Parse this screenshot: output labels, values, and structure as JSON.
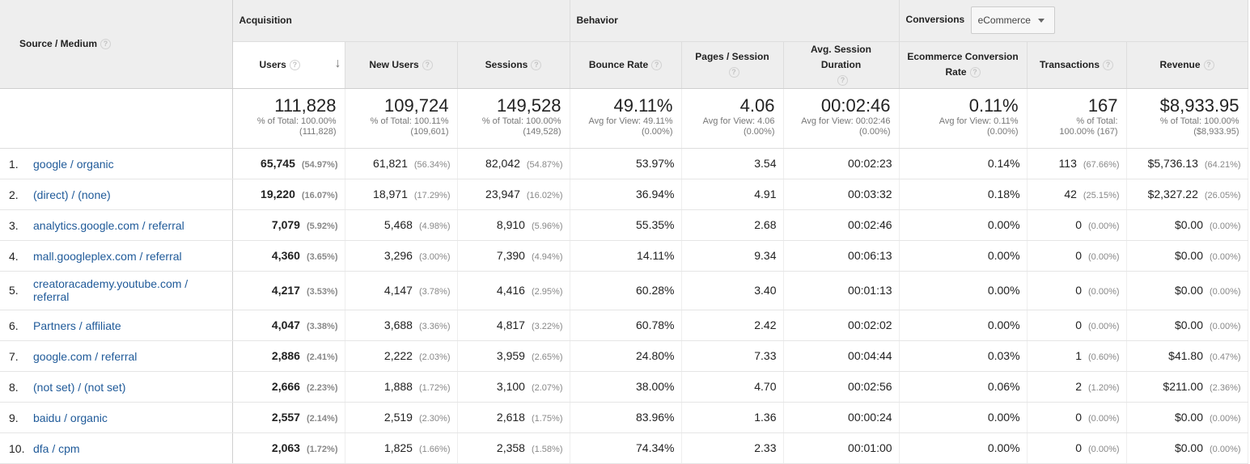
{
  "headers": {
    "source_medium": "Source / Medium",
    "acquisition": "Acquisition",
    "behavior": "Behavior",
    "conversions": "Conversions",
    "conversion_select": "eCommerce",
    "columns": {
      "users": "Users",
      "new_users": "New Users",
      "sessions": "Sessions",
      "bounce_rate": "Bounce Rate",
      "pages_session": "Pages / Session",
      "avg_duration": "Avg. Session Duration",
      "conv_rate": "Ecommerce Conversion Rate",
      "transactions": "Transactions",
      "revenue": "Revenue"
    }
  },
  "totals": {
    "users": {
      "value": "111,828",
      "l1": "% of Total: 100.00%",
      "l2": "(111,828)"
    },
    "new_users": {
      "value": "109,724",
      "l1": "% of Total: 100.11%",
      "l2": "(109,601)"
    },
    "sessions": {
      "value": "149,528",
      "l1": "% of Total: 100.00%",
      "l2": "(149,528)"
    },
    "bounce_rate": {
      "value": "49.11%",
      "l1": "Avg for View: 49.11%",
      "l2": "(0.00%)"
    },
    "pages_session": {
      "value": "4.06",
      "l1": "Avg for View: 4.06",
      "l2": "(0.00%)"
    },
    "avg_duration": {
      "value": "00:02:46",
      "l1": "Avg for View: 00:02:46",
      "l2": "(0.00%)"
    },
    "conv_rate": {
      "value": "0.11%",
      "l1": "Avg for View: 0.11%",
      "l2": "(0.00%)"
    },
    "transactions": {
      "value": "167",
      "l1": "% of Total:",
      "l2": "100.00% (167)"
    },
    "revenue": {
      "value": "$8,933.95",
      "l1": "% of Total: 100.00%",
      "l2": "($8,933.95)"
    }
  },
  "rows": [
    {
      "idx": "1.",
      "source": "google / organic",
      "users": "65,745",
      "users_pct": "(54.97%)",
      "new_users": "61,821",
      "new_users_pct": "(56.34%)",
      "sessions": "82,042",
      "sessions_pct": "(54.87%)",
      "bounce": "53.97%",
      "pages": "3.54",
      "duration": "00:02:23",
      "conv": "0.14%",
      "trans": "113",
      "trans_pct": "(67.66%)",
      "revenue": "$5,736.13",
      "revenue_pct": "(64.21%)"
    },
    {
      "idx": "2.",
      "source": "(direct) / (none)",
      "users": "19,220",
      "users_pct": "(16.07%)",
      "new_users": "18,971",
      "new_users_pct": "(17.29%)",
      "sessions": "23,947",
      "sessions_pct": "(16.02%)",
      "bounce": "36.94%",
      "pages": "4.91",
      "duration": "00:03:32",
      "conv": "0.18%",
      "trans": "42",
      "trans_pct": "(25.15%)",
      "revenue": "$2,327.22",
      "revenue_pct": "(26.05%)"
    },
    {
      "idx": "3.",
      "source": "analytics.google.com / referral",
      "users": "7,079",
      "users_pct": "(5.92%)",
      "new_users": "5,468",
      "new_users_pct": "(4.98%)",
      "sessions": "8,910",
      "sessions_pct": "(5.96%)",
      "bounce": "55.35%",
      "pages": "2.68",
      "duration": "00:02:46",
      "conv": "0.00%",
      "trans": "0",
      "trans_pct": "(0.00%)",
      "revenue": "$0.00",
      "revenue_pct": "(0.00%)"
    },
    {
      "idx": "4.",
      "source": "mall.googleplex.com / referral",
      "users": "4,360",
      "users_pct": "(3.65%)",
      "new_users": "3,296",
      "new_users_pct": "(3.00%)",
      "sessions": "7,390",
      "sessions_pct": "(4.94%)",
      "bounce": "14.11%",
      "pages": "9.34",
      "duration": "00:06:13",
      "conv": "0.00%",
      "trans": "0",
      "trans_pct": "(0.00%)",
      "revenue": "$0.00",
      "revenue_pct": "(0.00%)"
    },
    {
      "idx": "5.",
      "source": "creatoracademy.youtube.com / referral",
      "users": "4,217",
      "users_pct": "(3.53%)",
      "new_users": "4,147",
      "new_users_pct": "(3.78%)",
      "sessions": "4,416",
      "sessions_pct": "(2.95%)",
      "bounce": "60.28%",
      "pages": "3.40",
      "duration": "00:01:13",
      "conv": "0.00%",
      "trans": "0",
      "trans_pct": "(0.00%)",
      "revenue": "$0.00",
      "revenue_pct": "(0.00%)"
    },
    {
      "idx": "6.",
      "source": "Partners / affiliate",
      "users": "4,047",
      "users_pct": "(3.38%)",
      "new_users": "3,688",
      "new_users_pct": "(3.36%)",
      "sessions": "4,817",
      "sessions_pct": "(3.22%)",
      "bounce": "60.78%",
      "pages": "2.42",
      "duration": "00:02:02",
      "conv": "0.00%",
      "trans": "0",
      "trans_pct": "(0.00%)",
      "revenue": "$0.00",
      "revenue_pct": "(0.00%)"
    },
    {
      "idx": "7.",
      "source": "google.com / referral",
      "users": "2,886",
      "users_pct": "(2.41%)",
      "new_users": "2,222",
      "new_users_pct": "(2.03%)",
      "sessions": "3,959",
      "sessions_pct": "(2.65%)",
      "bounce": "24.80%",
      "pages": "7.33",
      "duration": "00:04:44",
      "conv": "0.03%",
      "trans": "1",
      "trans_pct": "(0.60%)",
      "revenue": "$41.80",
      "revenue_pct": "(0.47%)"
    },
    {
      "idx": "8.",
      "source": "(not set) / (not set)",
      "users": "2,666",
      "users_pct": "(2.23%)",
      "new_users": "1,888",
      "new_users_pct": "(1.72%)",
      "sessions": "3,100",
      "sessions_pct": "(2.07%)",
      "bounce": "38.00%",
      "pages": "4.70",
      "duration": "00:02:56",
      "conv": "0.06%",
      "trans": "2",
      "trans_pct": "(1.20%)",
      "revenue": "$211.00",
      "revenue_pct": "(2.36%)"
    },
    {
      "idx": "9.",
      "source": "baidu / organic",
      "users": "2,557",
      "users_pct": "(2.14%)",
      "new_users": "2,519",
      "new_users_pct": "(2.30%)",
      "sessions": "2,618",
      "sessions_pct": "(1.75%)",
      "bounce": "83.96%",
      "pages": "1.36",
      "duration": "00:00:24",
      "conv": "0.00%",
      "trans": "0",
      "trans_pct": "(0.00%)",
      "revenue": "$0.00",
      "revenue_pct": "(0.00%)"
    },
    {
      "idx": "10.",
      "source": "dfa / cpm",
      "users": "2,063",
      "users_pct": "(1.72%)",
      "new_users": "1,825",
      "new_users_pct": "(1.66%)",
      "sessions": "2,358",
      "sessions_pct": "(1.58%)",
      "bounce": "74.34%",
      "pages": "2.33",
      "duration": "00:01:00",
      "conv": "0.00%",
      "trans": "0",
      "trans_pct": "(0.00%)",
      "revenue": "$0.00",
      "revenue_pct": "(0.00%)"
    }
  ]
}
